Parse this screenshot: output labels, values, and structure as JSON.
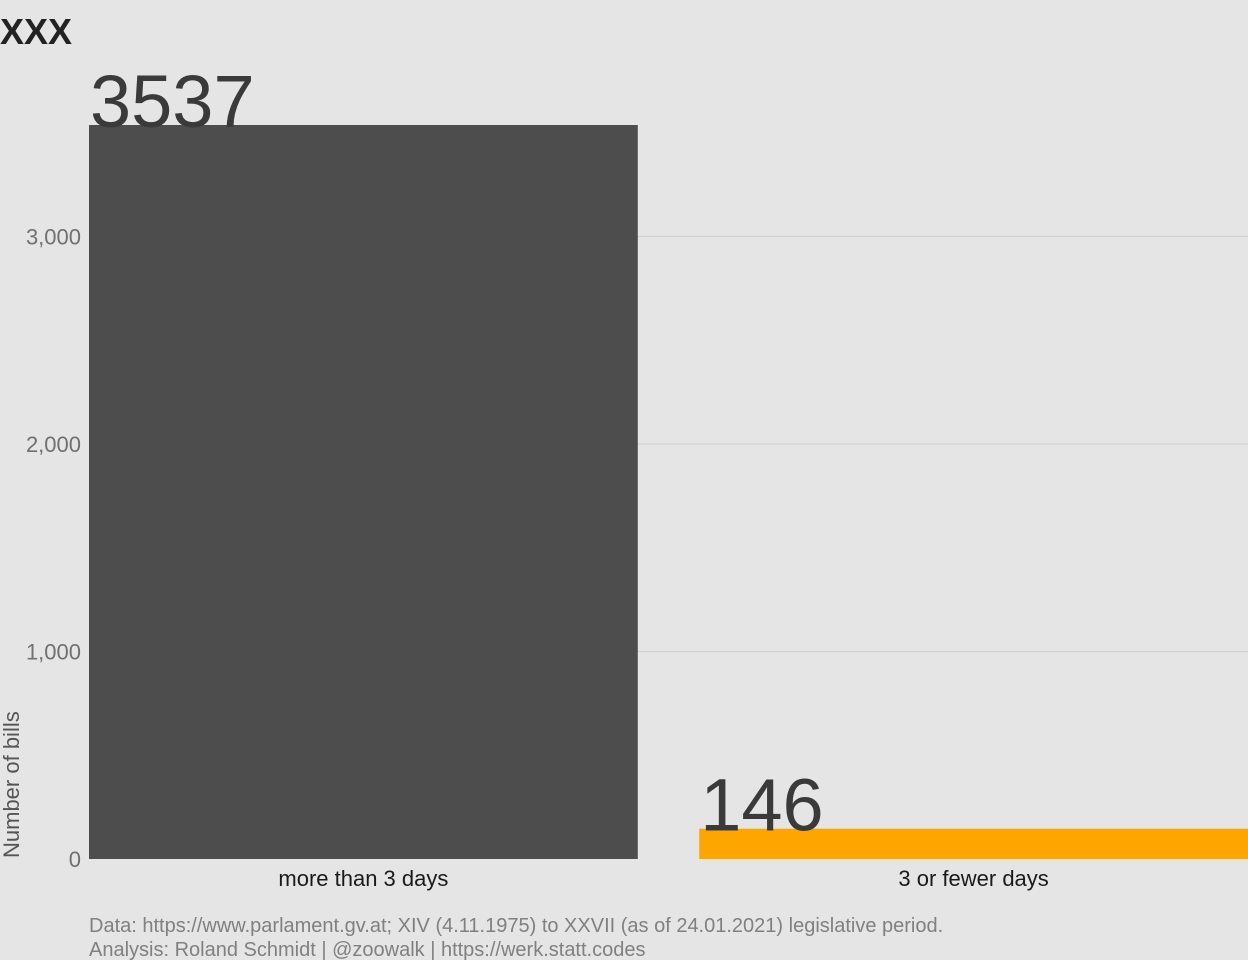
{
  "chart_data": {
    "type": "bar",
    "title": "XXX",
    "categories": [
      "more than 3 days",
      "3 or fewer days"
    ],
    "values": [
      3537,
      146
    ],
    "data_labels": [
      "3537",
      "146"
    ],
    "colors": [
      "#4d4d4d",
      "#ffa500"
    ],
    "xlabel": "",
    "ylabel": "Number of bills",
    "ylim": [
      0,
      3537
    ],
    "yticks": [
      0,
      1000,
      2000,
      3000
    ],
    "ytick_labels": [
      "0",
      "1,000",
      "2,000",
      "3,000"
    ],
    "grid": "horizontal",
    "legend": "none"
  },
  "caption": {
    "line1": "Data: https://www.parlament.gv.at; XIV (4.11.1975) to XXVII (as of 24.01.2021) legislative period.",
    "line2": "Analysis: Roland Schmidt | @zoowalk | https://werk.statt.codes"
  }
}
